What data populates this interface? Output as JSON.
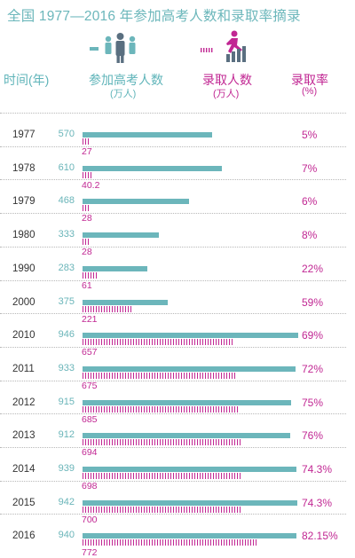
{
  "title": "全国 1977—2016 年参加高考人数和录取率摘录",
  "headers": {
    "year": "时间(年)",
    "applicants": "参加高考人数",
    "applicants_unit": "(万人)",
    "admitted": "录取人数",
    "admitted_unit": "(万人)",
    "rate": "录取率",
    "rate_unit": "(%)"
  },
  "legend": {
    "applicants_icon": "people-group-icon",
    "admitted_icon": "person-climbing-stairs-icon"
  },
  "colors": {
    "applicants": "#6cb6bb",
    "admitted": "#c12793",
    "title": "#6cb7bb"
  },
  "chart_data": {
    "type": "bar",
    "categories": [
      "1977",
      "1978",
      "1979",
      "1980",
      "1990",
      "2000",
      "2010",
      "2011",
      "2012",
      "2013",
      "2014",
      "2015",
      "2016"
    ],
    "series": [
      {
        "name": "参加高考人数",
        "values": [
          570,
          610,
          468,
          333,
          283,
          375,
          946,
          933,
          915,
          912,
          939,
          942,
          940
        ]
      },
      {
        "name": "录取人数",
        "values": [
          27,
          40.2,
          28,
          28,
          61,
          221,
          657,
          675,
          685,
          694,
          698,
          700,
          772
        ]
      }
    ],
    "value_labels": {
      "applicants": [
        "570",
        "610",
        "468",
        "333",
        "283",
        "375",
        "946",
        "933",
        "915",
        "912",
        "939",
        "942",
        "940"
      ],
      "admitted": [
        "27",
        "40.2",
        "28",
        "28",
        "61",
        "221",
        "657",
        "675",
        "685",
        "694",
        "698",
        "700",
        "772"
      ]
    },
    "rate_labels": [
      "5%",
      "7%",
      "6%",
      "8%",
      "22%",
      "59%",
      "69%",
      "72%",
      "75%",
      "76%",
      "74.3%",
      "74.3%",
      "82.15%"
    ]
  }
}
